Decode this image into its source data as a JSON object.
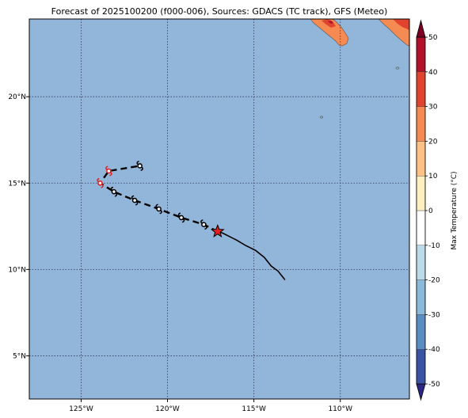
{
  "title": "Forecast of 2025100200 (f000-006), Sources: GDACS (TC track), GFS (Meteo)",
  "map": {
    "lon_range": [
      -128,
      -106
    ],
    "lat_range": [
      2.5,
      24.5
    ],
    "lon_ticks": [
      {
        "value": -125,
        "label": "125°W"
      },
      {
        "value": -120,
        "label": "120°W"
      },
      {
        "value": -115,
        "label": "115°W"
      },
      {
        "value": -110,
        "label": "110°W"
      }
    ],
    "lat_ticks": [
      {
        "value": 5,
        "label": "5°N"
      },
      {
        "value": 10,
        "label": "10°N"
      },
      {
        "value": 15,
        "label": "15°N"
      },
      {
        "value": 20,
        "label": "20°N"
      }
    ],
    "ocean_color": "#92b6da",
    "gridline_color": "#333355"
  },
  "colorbar": {
    "label": "Max Temperature (°C)",
    "ticks": [
      "-50",
      "-40",
      "-30",
      "-20",
      "-10",
      "0",
      "10",
      "20",
      "30",
      "40",
      "50"
    ],
    "colors": [
      "#2c2783",
      "#3a53a3",
      "#5a8ec2",
      "#8ab9d9",
      "#bcdbea",
      "#ffffff",
      "#fdefc0",
      "#fdc186",
      "#f58a52",
      "#e0442e",
      "#b3112a",
      "#7c0025"
    ]
  },
  "track": {
    "past_path": [
      [
        -113.2,
        9.4
      ],
      [
        -113.6,
        9.9
      ],
      [
        -114.0,
        10.2
      ],
      [
        -114.4,
        10.7
      ],
      [
        -114.9,
        11.1
      ],
      [
        -115.5,
        11.4
      ],
      [
        -116.0,
        11.7
      ],
      [
        -116.4,
        11.9
      ],
      [
        -116.8,
        12.1
      ],
      [
        -117.1,
        12.2
      ]
    ],
    "current_position": [
      -117.1,
      12.2
    ],
    "forecast_points": [
      {
        "lon": -117.9,
        "lat": 12.6,
        "color": "#000000"
      },
      {
        "lon": -119.2,
        "lat": 13.0,
        "color": "#000000"
      },
      {
        "lon": -120.5,
        "lat": 13.5,
        "color": "#000000"
      },
      {
        "lon": -121.9,
        "lat": 14.0,
        "color": "#000000"
      },
      {
        "lon": -123.1,
        "lat": 14.5,
        "color": "#000000"
      },
      {
        "lon": -123.9,
        "lat": 15.0,
        "color": "#e02020"
      },
      {
        "lon": -123.4,
        "lat": 15.7,
        "color": "#e02020"
      },
      {
        "lon": -121.6,
        "lat": 16.0,
        "color": "#000000"
      }
    ],
    "current_marker_color": "#e02020"
  }
}
